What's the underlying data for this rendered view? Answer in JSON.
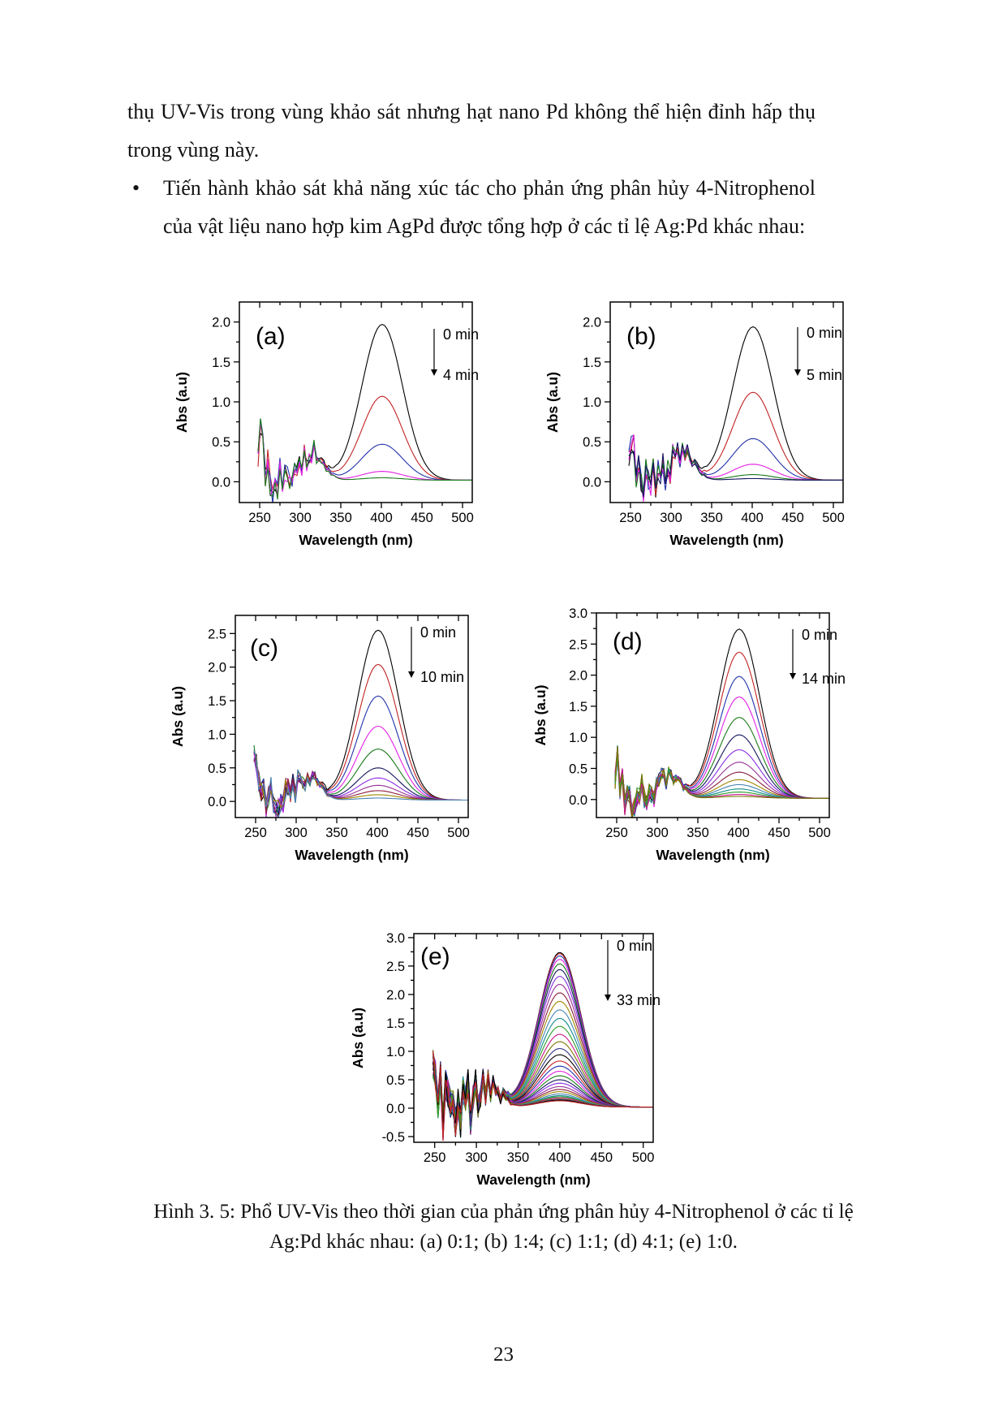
{
  "page": {
    "paragraph_top": "thụ UV-Vis trong vùng khảo sát nhưng hạt nano Pd không thể hiện đỉnh hấp thụ trong vùng này.",
    "bullet_marker": "•",
    "bullet_text": "Tiến hành khảo sát khả năng xúc tác cho phản ứng phân hủy 4-Nitrophenol của vật liệu nano hợp kim AgPd được tổng hợp ở các tỉ lệ Ag:Pd khác nhau:",
    "figure_caption_line1": "Hình 3. 5: Phổ UV-Vis theo thời gian của phản ứng phân hủy 4-Nitrophenol ở các tỉ lệ",
    "figure_caption_line2": "Ag:Pd khác nhau: (a) 0:1; (b) 1:4; (c) 1:1; (d) 4:1; (e) 1:0.",
    "page_number": "23"
  },
  "chart_palette": [
    "#000000",
    "#c22222",
    "#2233aa",
    "#e320e3",
    "#1a7a1a",
    "#13135e",
    "#8a2be2",
    "#993399",
    "#8b1c3c",
    "#a08800",
    "#4682b4",
    "#0f8b8b",
    "#2aa02a",
    "#c71585",
    "#777700",
    "#333388"
  ],
  "chart_data": [
    {
      "type": "line",
      "panel_label": "(a)",
      "xlabel": "Wavelength (nm)",
      "ylabel": "Abs (a.u)",
      "xlim": [
        225,
        512
      ],
      "ylim": [
        -0.26,
        2.25
      ],
      "xticks": [
        250,
        300,
        350,
        400,
        450,
        500
      ],
      "yticks": [
        0,
        0.5,
        1,
        1.5,
        2
      ],
      "annotation_start": "0 min",
      "annotation_end": "4 min",
      "peak_wavelength_nm": 401,
      "series_times_min": [
        0,
        1,
        2,
        3,
        4
      ],
      "series_peak_abs": [
        1.95,
        1.05,
        0.45,
        0.11,
        0.03
      ],
      "noise_amp": 0.45
    },
    {
      "type": "line",
      "panel_label": "(b)",
      "xlabel": "Wavelength (nm)",
      "ylabel": "Abs (a.u)",
      "xlim": [
        225,
        512
      ],
      "ylim": [
        -0.26,
        2.25
      ],
      "xticks": [
        250,
        300,
        350,
        400,
        450,
        500
      ],
      "yticks": [
        0,
        0.5,
        1,
        1.5,
        2
      ],
      "annotation_start": "0 min",
      "annotation_end": "5 min",
      "peak_wavelength_nm": 401,
      "series_times_min": [
        0,
        1,
        2,
        3,
        4,
        5
      ],
      "series_peak_abs": [
        1.92,
        1.1,
        0.52,
        0.2,
        0.07,
        0.02
      ],
      "noise_amp": 0.45
    },
    {
      "type": "line",
      "panel_label": "(c)",
      "xlabel": "Wavelength (nm)",
      "ylabel": "Abs (a.u)",
      "xlim": [
        225,
        512
      ],
      "ylim": [
        -0.24,
        2.77
      ],
      "xticks": [
        250,
        300,
        350,
        400,
        450,
        500
      ],
      "yticks": [
        0,
        0.5,
        1,
        1.5,
        2,
        2.5
      ],
      "annotation_start": "0 min",
      "annotation_end": "10 min",
      "peak_wavelength_nm": 401,
      "series_times_min": [
        0,
        1,
        2,
        3,
        4,
        5,
        6,
        7,
        8,
        9,
        10
      ],
      "series_peak_abs": [
        2.53,
        2.02,
        1.55,
        1.1,
        0.76,
        0.48,
        0.33,
        0.22,
        0.14,
        0.08,
        0.03
      ],
      "noise_amp": 0.5
    },
    {
      "type": "line",
      "panel_label": "(d)",
      "xlabel": "Wavelength (nm)",
      "ylabel": "Abs (a.u)",
      "xlim": [
        225,
        512
      ],
      "ylim": [
        -0.29,
        3.0
      ],
      "xticks": [
        250,
        300,
        350,
        400,
        450,
        500
      ],
      "yticks": [
        0,
        0.5,
        1,
        1.5,
        2,
        2.5,
        3
      ],
      "annotation_start": "0 min",
      "annotation_end": "14 min",
      "peak_wavelength_nm": 401,
      "series_times_min": [
        0,
        1,
        2,
        3,
        4,
        5,
        6,
        7,
        8,
        9,
        10,
        11,
        12,
        13,
        14
      ],
      "series_peak_abs": [
        2.72,
        2.35,
        1.96,
        1.63,
        1.3,
        1.02,
        0.78,
        0.58,
        0.42,
        0.3,
        0.22,
        0.15,
        0.1,
        0.06,
        0.03
      ],
      "noise_amp": 0.5
    },
    {
      "type": "line",
      "panel_label": "(e)",
      "xlabel": "Wavelength (nm)",
      "ylabel": "Abs (a.u)",
      "xlim": [
        225,
        512
      ],
      "ylim": [
        -0.6,
        3.07
      ],
      "xticks": [
        250,
        300,
        350,
        400,
        450,
        500
      ],
      "yticks": [
        -0.5,
        0,
        0.5,
        1,
        1.5,
        2,
        2.5,
        3
      ],
      "annotation_start": "0 min",
      "annotation_end": "33 min",
      "peak_wavelength_nm": 400,
      "series_times_min": [
        0,
        1,
        2,
        3,
        4,
        5,
        6,
        7,
        8,
        9,
        10,
        11,
        12,
        13,
        14,
        15,
        16,
        17,
        18,
        19,
        20,
        21,
        22,
        23,
        24,
        25,
        26,
        27,
        28,
        29,
        30,
        31,
        32,
        33
      ],
      "series_peak_abs": [
        2.72,
        2.7,
        2.66,
        2.6,
        2.52,
        2.42,
        2.3,
        2.16,
        2.01,
        1.86,
        1.71,
        1.56,
        1.42,
        1.28,
        1.15,
        1.03,
        0.92,
        0.81,
        0.72,
        0.63,
        0.55,
        0.48,
        0.42,
        0.36,
        0.31,
        0.27,
        0.23,
        0.2,
        0.18,
        0.16,
        0.14,
        0.13,
        0.12,
        0.11
      ],
      "noise_amp": 0.85
    }
  ]
}
